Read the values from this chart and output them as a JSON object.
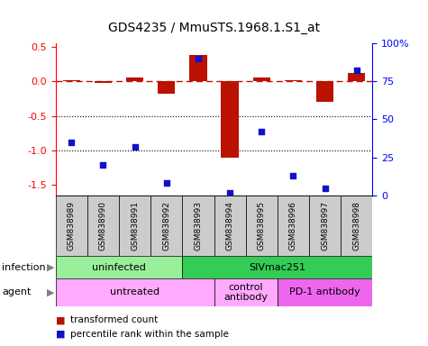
{
  "title": "GDS4235 / MmuSTS.1968.1.S1_at",
  "samples": [
    "GSM838989",
    "GSM838990",
    "GSM838991",
    "GSM838992",
    "GSM838993",
    "GSM838994",
    "GSM838995",
    "GSM838996",
    "GSM838997",
    "GSM838998"
  ],
  "transformed_count": [
    0.02,
    -0.02,
    0.05,
    -0.18,
    0.38,
    -1.1,
    0.05,
    0.02,
    -0.3,
    0.12
  ],
  "percentile_rank": [
    35,
    20,
    32,
    8,
    90,
    2,
    42,
    13,
    5,
    82
  ],
  "ylim_left": [
    -1.65,
    0.55
  ],
  "ylim_right": [
    0,
    100
  ],
  "yticks_left": [
    0.5,
    0.0,
    -0.5,
    -1.0,
    -1.5
  ],
  "yticks_right": [
    0,
    25,
    50,
    75,
    100
  ],
  "infection_groups": [
    {
      "label": "uninfected",
      "start": 0,
      "end": 4,
      "color": "#99EE99"
    },
    {
      "label": "SIVmac251",
      "start": 4,
      "end": 10,
      "color": "#33CC55"
    }
  ],
  "agent_groups": [
    {
      "label": "untreated",
      "start": 0,
      "end": 5,
      "color": "#FFAAFF"
    },
    {
      "label": "control\nantibody",
      "start": 5,
      "end": 7,
      "color": "#FFAAFF"
    },
    {
      "label": "PD-1 antibody",
      "start": 7,
      "end": 10,
      "color": "#EE66EE"
    }
  ],
  "bar_color": "#BB1100",
  "dot_color": "#1111CC",
  "dotted_lines": [
    -0.5,
    -1.0
  ],
  "legend_bar_label": "transformed count",
  "legend_dot_label": "percentile rank within the sample",
  "background_color": "#ffffff",
  "cell_color": "#CCCCCC"
}
